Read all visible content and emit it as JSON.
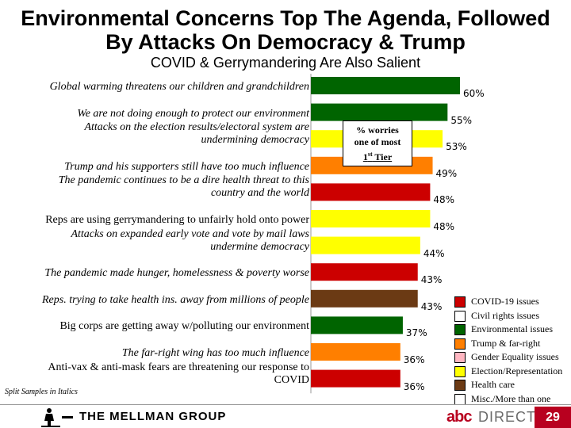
{
  "header": {
    "title_line1": "Environmental Concerns Top The Agenda, Followed",
    "title_line2": "By Attacks On Democracy & Trump",
    "subtitle": "COVID & Gerrymandering Are Also Salient"
  },
  "chart_data": {
    "type": "bar",
    "orientation": "horizontal",
    "xlim": [
      0,
      60
    ],
    "categories": [
      "Global warming threatens our children and grandchildren",
      "We are not doing enough to protect our environment",
      "Attacks on the election results/electoral system are undermining democracy",
      "Trump and his supporters still have too much influence",
      "The pandemic continues to be a dire health threat to this country and the world",
      "Reps are using gerrymandering to unfairly hold onto power",
      "Attacks on expanded early vote and vote by mail laws undermine democracy",
      "The pandemic made hunger, homelessness & poverty worse",
      "Reps. trying to take health ins. away from millions of people",
      "Big corps are getting away w/polluting our environment",
      "The far-right wing has too much influence",
      "Anti-vax & anti-mask fears are threatening our response to COVID"
    ],
    "category_lines": [
      [
        "Global warming threatens our children and grandchildren"
      ],
      [
        "We are not doing enough to protect our environment"
      ],
      [
        "Attacks on the election results/electoral system are",
        "undermining democracy"
      ],
      [
        "Trump and his supporters still have too much influence"
      ],
      [
        "The pandemic continues to be a dire health threat to this",
        "country and the world"
      ],
      [
        "Reps are using gerrymandering to unfairly hold onto power"
      ],
      [
        "Attacks on expanded early vote and vote by mail laws",
        "undermine democracy"
      ],
      [
        "The pandemic made hunger, homelessness & poverty worse"
      ],
      [
        "Reps. trying to take health ins. away from millions of people"
      ],
      [
        "Big corps are getting away w/polluting our environment"
      ],
      [
        "The far-right wing has too much influence"
      ],
      [
        "Anti-vax & anti-mask fears are threatening our response to",
        "COVID"
      ]
    ],
    "italic": [
      true,
      true,
      true,
      true,
      true,
      false,
      true,
      true,
      true,
      false,
      true,
      false
    ],
    "values": [
      60,
      55,
      53,
      49,
      48,
      48,
      44,
      43,
      43,
      37,
      36,
      36
    ],
    "value_labels": [
      "60%",
      "55%",
      "53%",
      "49%",
      "48%",
      "48%",
      "44%",
      "43%",
      "43%",
      "37%",
      "36%",
      "36%"
    ],
    "groups": [
      "env",
      "env",
      "election",
      "trump",
      "covid",
      "election",
      "election",
      "covid",
      "health",
      "env",
      "trump",
      "covid"
    ],
    "annotation": {
      "line1": "% worries",
      "line2": "one of most",
      "line3_pre": "1",
      "line3_sup": "st",
      "line3_post": " Tier"
    },
    "legend": [
      {
        "key": "covid",
        "label": "COVID-19 issues",
        "color": "#cc0000"
      },
      {
        "key": "civil",
        "label": "Civil rights issues",
        "color": "#ffffff"
      },
      {
        "key": "env",
        "label": "Environmental issues",
        "color": "#006400"
      },
      {
        "key": "trump",
        "label": "Trump & far-right",
        "color": "#ff7f00"
      },
      {
        "key": "gender",
        "label": "Gender Equality issues",
        "color": "#ffb6c1"
      },
      {
        "key": "election",
        "label": "Election/Representation",
        "color": "#ffff00"
      },
      {
        "key": "health",
        "label": "Health care",
        "color": "#6b3a14"
      },
      {
        "key": "misc",
        "label": "Misc./More than one",
        "color": "#ffffff"
      }
    ],
    "colors": {
      "env": "#006400",
      "election": "#ffff00",
      "trump": "#ff7f00",
      "covid": "#cc0000",
      "health": "#6b3a14"
    }
  },
  "notes": {
    "split_samples": "Split Samples in Italics"
  },
  "footer": {
    "company": "THE MELLMAN GROUP",
    "partner_abc": "abc",
    "partner_direct": "DIRECT",
    "page_number": "29"
  }
}
